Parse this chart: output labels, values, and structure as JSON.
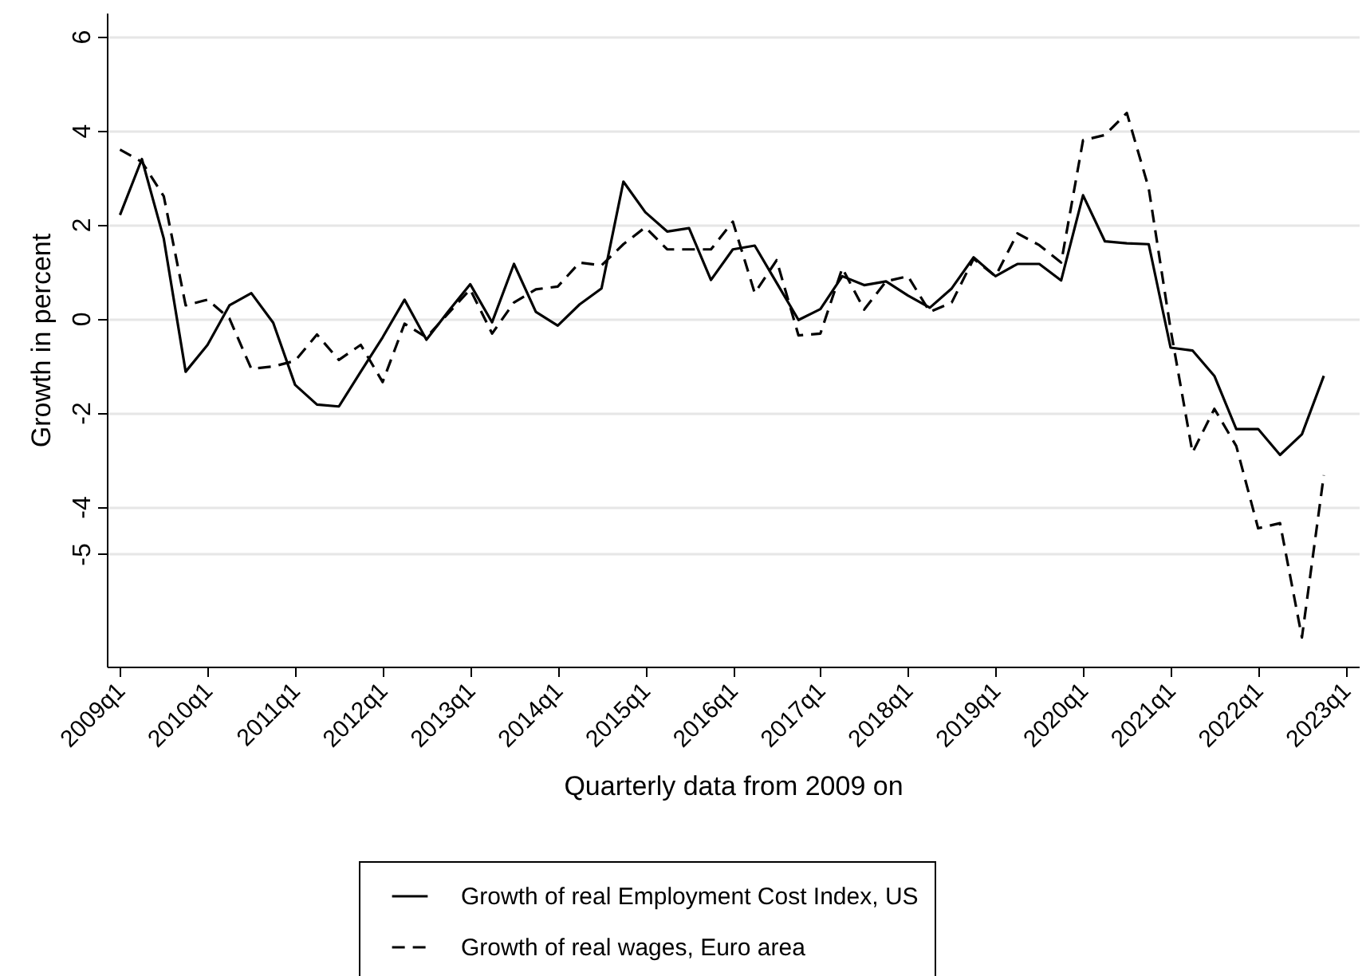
{
  "chart_data": {
    "type": "line",
    "xlabel": "Quarterly data from 2009 on",
    "ylabel": "Growth in percent",
    "categories": [
      "2009q1",
      null,
      null,
      null,
      "2010q1",
      null,
      null,
      null,
      "2011q1",
      null,
      null,
      null,
      "2012q1",
      null,
      null,
      null,
      "2013q1",
      null,
      null,
      null,
      "2014q1",
      null,
      null,
      null,
      "2015q1",
      null,
      null,
      null,
      "2016q1",
      null,
      null,
      null,
      "2017q1",
      null,
      null,
      null,
      "2018q1",
      null,
      null,
      null,
      "2019q1",
      null,
      null,
      null,
      "2020q1",
      null,
      null,
      null,
      "2021q1",
      null,
      null,
      null,
      "2022q1",
      null,
      null,
      null,
      "2023q1"
    ],
    "series": [
      {
        "name": "Growth of real Employment Cost Index, US",
        "color": "#000000",
        "line_style": "solid",
        "values": [
          2.2,
          3.39,
          1.7,
          -1.13,
          -0.56,
          0.28,
          0.54,
          -0.09,
          -1.41,
          -1.83,
          -1.87,
          -1.13,
          -0.4,
          0.4,
          -0.45,
          0.15,
          0.73,
          -0.08,
          1.16,
          0.14,
          -0.15,
          0.3,
          0.64,
          2.91,
          2.26,
          1.85,
          1.92,
          0.82,
          1.47,
          1.55,
          0.76,
          -0.03,
          0.2,
          0.9,
          0.71,
          0.79,
          0.49,
          0.23,
          0.64,
          1.3,
          0.9,
          1.16,
          1.16,
          0.81,
          2.62,
          1.64,
          1.6,
          1.58,
          -0.62,
          -0.68,
          -1.22,
          -2.35,
          -2.35,
          -2.9,
          -2.46,
          -1.22,
          null
        ]
      },
      {
        "name": "Growth of real wages, Euro area",
        "color": "#000000",
        "line_style": "dashed",
        "values": [
          3.59,
          3.33,
          2.6,
          0.28,
          0.4,
          0,
          -1.07,
          -1.02,
          -0.9,
          -0.34,
          -0.88,
          -0.56,
          -1.35,
          -0.11,
          -0.4,
          0.11,
          0.62,
          -0.32,
          0.34,
          0.62,
          0.68,
          1.19,
          1.13,
          1.58,
          1.94,
          1.47,
          1.47,
          1.47,
          2.06,
          0.54,
          1.24,
          -0.36,
          -0.32,
          1.07,
          0.19,
          0.79,
          0.9,
          0.14,
          0.34,
          1.27,
          0.9,
          1.81,
          1.56,
          1.19,
          3.79,
          3.9,
          4.37,
          2.77,
          -0.23,
          -2.85,
          -1.92,
          -2.71,
          -4.46,
          -4.35,
          -6.78,
          -3.33,
          null
        ]
      }
    ],
    "ylim": [
      -7.4,
      6.5
    ],
    "yticks": [
      6,
      4,
      2,
      0,
      -2,
      -4,
      -5
    ],
    "grid": "y",
    "legend": "bottom"
  }
}
